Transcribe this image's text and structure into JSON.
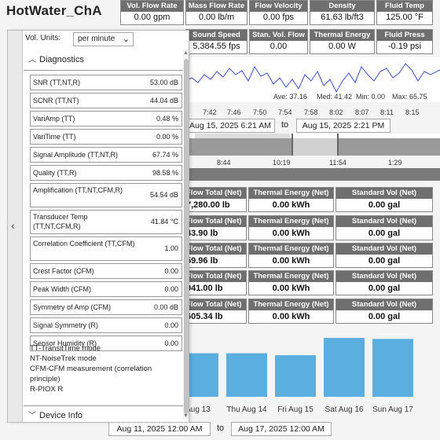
{
  "title": "HotWater_ChA",
  "metrics_row1": [
    {
      "label": "Vol. Flow Rate",
      "value": "0.00 gpm"
    },
    {
      "label": "Mass Flow Rate",
      "value": "0.00 lb/m"
    },
    {
      "label": "Flow Velocity",
      "value": "0.00 fps"
    },
    {
      "label": "Density",
      "value": "61.63 lb/ft3"
    },
    {
      "label": "Fluid Temp",
      "value": "125.00 °F"
    }
  ],
  "metrics_row2": [
    {
      "label": "Sound Speed",
      "value": "5,384.55 fps"
    },
    {
      "label": "Stan. Vol. Flow",
      "value": "0.00"
    },
    {
      "label": "Thermal Energy",
      "value": "0.00 W"
    },
    {
      "label": "Fluid Press",
      "value": "-0.19 psi"
    }
  ],
  "line_chart": {
    "stats": {
      "ave": "Ave: 37.16",
      "med": "Med: 41.42",
      "min": "Min: 0.00",
      "max": "Max: 65.75"
    },
    "x_ticks": [
      "7:42",
      "7:46",
      "7:50",
      "7:54",
      "7:58",
      "8:02",
      "8:07",
      "8:11",
      "8:15"
    ],
    "color": "#3a50c8"
  },
  "range1": {
    "start": "Aug 15, 2025 6:21 AM",
    "to": "to",
    "end": "Aug 15, 2025 2:21 PM"
  },
  "band_ticks": [
    "8:44",
    "10:19",
    "11:54",
    "1:29"
  ],
  "totals_headers": [
    "Flow Total (Net)",
    "Thermal Energy (Net)",
    "Standard Vol (Net)"
  ],
  "totals_rows": [
    [
      "7,280.00 lb",
      "0.00 kWh",
      "0.00 gal"
    ],
    [
      "43.90 lb",
      "0.00 kWh",
      "0.00 gal"
    ],
    [
      "59.96 lb",
      "0.00 kWh",
      "0.00 gal"
    ],
    [
      "941.00 lb",
      "0.00 kWh",
      "0.00 gal"
    ],
    [
      "605.34 lb",
      "0.00 kWh",
      "0.00 gal"
    ]
  ],
  "chart_data": {
    "type": "bar",
    "categories": [
      "Aug 13",
      "Thu Aug 14",
      "Fri Aug 15",
      "Sat Aug 16",
      "Sun Aug 17"
    ],
    "values": [
      0.88,
      0.88,
      0.84,
      1.19,
      1.17
    ],
    "color": "#5aaee0"
  },
  "range2": {
    "start": "Aug 11, 2025 12:00 AM",
    "to": "to",
    "end": "Aug 17, 2025 12:00 AM"
  },
  "panel": {
    "vol_units_label": "Vol. Units:",
    "vol_units_value": "per minute",
    "diagnostics_title": "Diagnostics",
    "device_info_title": "Device Info",
    "rows": [
      {
        "k": "SNR (TT,NT,R)",
        "v": "53.00 dB"
      },
      {
        "k": "SCNR (TT,NT)",
        "v": "44.04 dB"
      },
      {
        "k": "VariAmp (TT)",
        "v": "0.48 %"
      },
      {
        "k": "VariTime (TT)",
        "v": "0.00 %"
      },
      {
        "k": "Signal Amplitude (TT,NT,R)",
        "v": "67.74 %"
      },
      {
        "k": "Quality (TT,R)",
        "v": "98.58 %"
      },
      {
        "k": "Amplification (TT,NT,CFM,R)",
        "v": "54.54 dB"
      },
      {
        "k": "Transducer Temp (TT,NT,CFM,R)",
        "v": "41.84 °C"
      },
      {
        "k": "Correlation Coefficient (TT,CFM)",
        "v": "1.00"
      },
      {
        "k": "Crest Factor (CFM)",
        "v": "0.00"
      },
      {
        "k": "Peak Width (CFM)",
        "v": "0.00"
      },
      {
        "k": "Symmetry of Amp (CFM)",
        "v": "0.00 dB"
      },
      {
        "k": "Signal Symmetry (R)",
        "v": "0.00"
      },
      {
        "k": "Sensor Humidity (R)",
        "v": "0.00"
      }
    ],
    "legend": [
      "TT-TransitTime mode",
      "NT-NoiseTrek mode",
      "CFM-CFM measurement (correlation principle)",
      "R-PIOX R"
    ]
  }
}
